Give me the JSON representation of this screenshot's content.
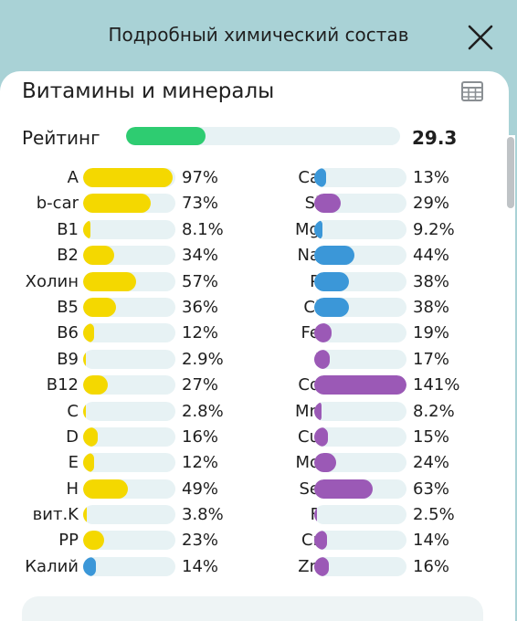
{
  "header": {
    "title": "Подробный химический состав"
  },
  "section": {
    "title": "Витамины и минералы"
  },
  "rating": {
    "label": "Рейтинг",
    "value": "29.3",
    "fill": 0.29
  },
  "colors": {
    "vitamin": "#f4d800",
    "mineral_blue": "#3b97d8",
    "mineral_purple": "#9b59b6",
    "rating": "#2ecc71",
    "track": "#e7f2f4"
  },
  "vitamins": [
    {
      "label": "A",
      "pct": "97%",
      "value": 97,
      "color": "#f4d800"
    },
    {
      "label": "b-car",
      "pct": "73%",
      "value": 73,
      "color": "#f4d800"
    },
    {
      "label": "B1",
      "pct": "8.1%",
      "value": 8.1,
      "color": "#f4d800"
    },
    {
      "label": "B2",
      "pct": "34%",
      "value": 34,
      "color": "#f4d800"
    },
    {
      "label": "Холин",
      "pct": "57%",
      "value": 57,
      "color": "#f4d800"
    },
    {
      "label": "B5",
      "pct": "36%",
      "value": 36,
      "color": "#f4d800"
    },
    {
      "label": "B6",
      "pct": "12%",
      "value": 12,
      "color": "#f4d800"
    },
    {
      "label": "B9",
      "pct": "2.9%",
      "value": 2.9,
      "color": "#f4d800"
    },
    {
      "label": "B12",
      "pct": "27%",
      "value": 27,
      "color": "#f4d800"
    },
    {
      "label": "C",
      "pct": "2.8%",
      "value": 2.8,
      "color": "#f4d800"
    },
    {
      "label": "D",
      "pct": "16%",
      "value": 16,
      "color": "#f4d800"
    },
    {
      "label": "E",
      "pct": "12%",
      "value": 12,
      "color": "#f4d800"
    },
    {
      "label": "H",
      "pct": "49%",
      "value": 49,
      "color": "#f4d800"
    },
    {
      "label": "вит.K",
      "pct": "3.8%",
      "value": 3.8,
      "color": "#f4d800"
    },
    {
      "label": "PP",
      "pct": "23%",
      "value": 23,
      "color": "#f4d800"
    },
    {
      "label": "Калий",
      "pct": "14%",
      "value": 14,
      "color": "#3b97d8"
    }
  ],
  "minerals": [
    {
      "label": "Ca",
      "pct": "13%",
      "value": 13,
      "color": "#3b97d8"
    },
    {
      "label": "Si",
      "pct": "29%",
      "value": 29,
      "color": "#9b59b6"
    },
    {
      "label": "Mg",
      "pct": "9.2%",
      "value": 9.2,
      "color": "#3b97d8"
    },
    {
      "label": "Na",
      "pct": "44%",
      "value": 44,
      "color": "#3b97d8"
    },
    {
      "label": "P",
      "pct": "38%",
      "value": 38,
      "color": "#3b97d8"
    },
    {
      "label": "Cl",
      "pct": "38%",
      "value": 38,
      "color": "#3b97d8"
    },
    {
      "label": "Fe",
      "pct": "19%",
      "value": 19,
      "color": "#9b59b6"
    },
    {
      "label": "I",
      "pct": "17%",
      "value": 17,
      "color": "#9b59b6"
    },
    {
      "label": "Co",
      "pct": "141%",
      "value": 141,
      "color": "#9b59b6"
    },
    {
      "label": "Mn",
      "pct": "8.2%",
      "value": 8.2,
      "color": "#9b59b6"
    },
    {
      "label": "Cu",
      "pct": "15%",
      "value": 15,
      "color": "#9b59b6"
    },
    {
      "label": "Mo",
      "pct": "24%",
      "value": 24,
      "color": "#9b59b6"
    },
    {
      "label": "Se",
      "pct": "63%",
      "value": 63,
      "color": "#9b59b6"
    },
    {
      "label": "F",
      "pct": "2.5%",
      "value": 2.5,
      "color": "#9b59b6"
    },
    {
      "label": "Cr",
      "pct": "14%",
      "value": 14,
      "color": "#9b59b6"
    },
    {
      "label": "Zn",
      "pct": "16%",
      "value": 16,
      "color": "#9b59b6"
    }
  ]
}
